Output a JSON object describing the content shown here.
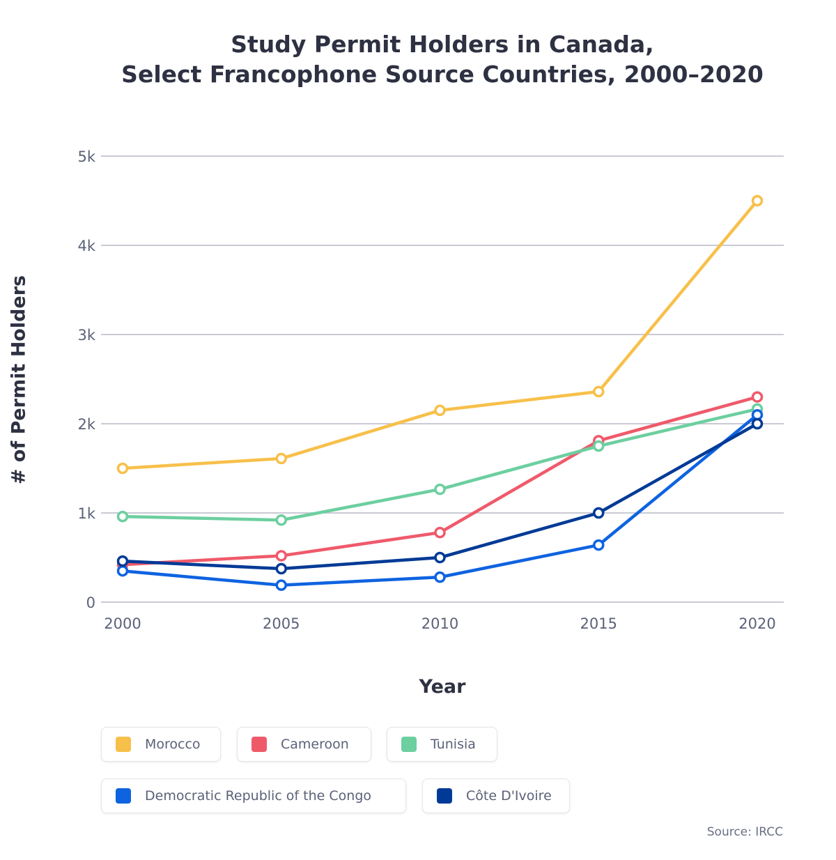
{
  "chart_data": {
    "type": "line",
    "title": [
      "Study Permit Holders in Canada,",
      "Select Francophone Source Countries, 2000–2020"
    ],
    "xlabel": "Year",
    "ylabel": "# of Permit Holders",
    "x": [
      2000,
      2005,
      2010,
      2015,
      2020
    ],
    "x_tick_labels": [
      "2000",
      "2005",
      "2010",
      "2015",
      "2020"
    ],
    "ylim": [
      0,
      5000
    ],
    "y_ticks": [
      0,
      1000,
      2000,
      3000,
      4000,
      5000
    ],
    "y_tick_labels": [
      "0",
      "1k",
      "2k",
      "3k",
      "4k",
      "5k"
    ],
    "grid": "horizontal",
    "legend": "bottom",
    "series": [
      {
        "name": "Morocco",
        "color": "#f7c04a",
        "values": [
          1500,
          1610,
          2150,
          2360,
          4500
        ]
      },
      {
        "name": "Cameroon",
        "color": "#ef5a6b",
        "values": [
          420,
          520,
          780,
          1810,
          2300
        ]
      },
      {
        "name": "Tunisia",
        "color": "#6ccf9f",
        "values": [
          960,
          920,
          1265,
          1750,
          2165
        ]
      },
      {
        "name": "Democratic Republic of the Congo",
        "color": "#0e63e0",
        "values": [
          350,
          190,
          280,
          640,
          2100
        ]
      },
      {
        "name": "Côte D'Ivoire",
        "color": "#003a96",
        "values": [
          460,
          375,
          500,
          1000,
          2000
        ]
      }
    ],
    "source": "Source: IRCC"
  }
}
